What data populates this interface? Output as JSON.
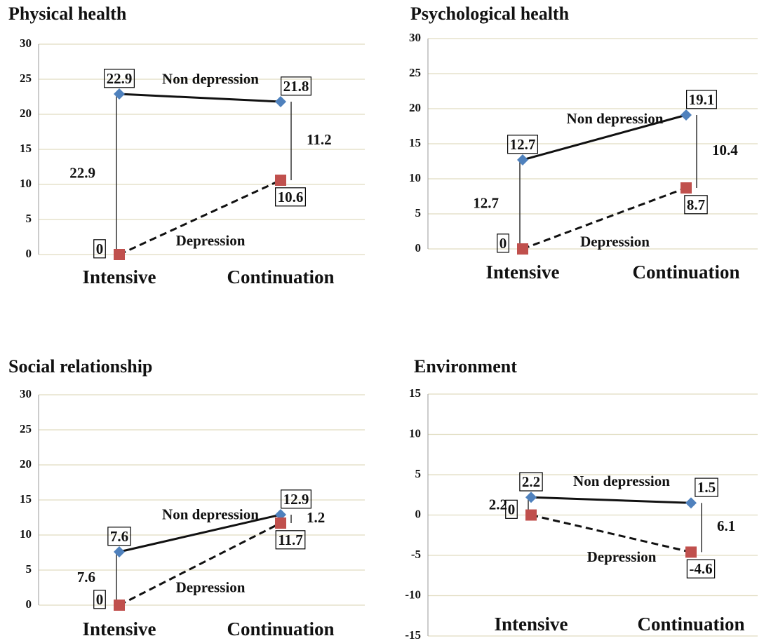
{
  "chart_data": [
    {
      "type": "line",
      "title": "Physical health",
      "categories": [
        "Intensive",
        "Continuation"
      ],
      "series": [
        {
          "name": "Non depression",
          "color": "#4f81bd",
          "marker": "diamond",
          "line": "solid",
          "values": [
            22.9,
            21.8
          ]
        },
        {
          "name": "Depression",
          "color": "#c0504d",
          "marker": "square",
          "line": "dashed",
          "values": [
            0,
            10.6
          ]
        }
      ],
      "differences": [
        22.9,
        11.2
      ],
      "ylim": [
        0,
        30
      ],
      "yticks": [
        0,
        5,
        10,
        15,
        20,
        25,
        30
      ],
      "grid": true
    },
    {
      "type": "line",
      "title": "Psychological health",
      "categories": [
        "Intensive",
        "Continuation"
      ],
      "series": [
        {
          "name": "Non depression",
          "color": "#4f81bd",
          "marker": "diamond",
          "line": "solid",
          "values": [
            12.7,
            19.1
          ]
        },
        {
          "name": "Depression",
          "color": "#c0504d",
          "marker": "square",
          "line": "dashed",
          "values": [
            0,
            8.7
          ]
        }
      ],
      "differences": [
        12.7,
        10.4
      ],
      "ylim": [
        0,
        30
      ],
      "yticks": [
        0,
        5,
        10,
        15,
        20,
        25,
        30
      ],
      "grid": true
    },
    {
      "type": "line",
      "title": "Social relationship",
      "categories": [
        "Intensive",
        "Continuation"
      ],
      "series": [
        {
          "name": "Non depression",
          "color": "#4f81bd",
          "marker": "diamond",
          "line": "solid",
          "values": [
            7.6,
            12.9
          ]
        },
        {
          "name": "Depression",
          "color": "#c0504d",
          "marker": "square",
          "line": "dashed",
          "values": [
            0,
            11.7
          ]
        }
      ],
      "differences": [
        7.6,
        1.2
      ],
      "ylim": [
        0,
        30
      ],
      "yticks": [
        0,
        5,
        10,
        15,
        20,
        25,
        30
      ],
      "grid": true
    },
    {
      "type": "line",
      "title": "Environment",
      "categories": [
        "Intensive",
        "Continuation"
      ],
      "series": [
        {
          "name": "Non depression",
          "color": "#4f81bd",
          "marker": "diamond",
          "line": "solid",
          "values": [
            2.2,
            1.5
          ]
        },
        {
          "name": "Depression",
          "color": "#c0504d",
          "marker": "square",
          "line": "dashed",
          "values": [
            0,
            -4.6
          ]
        }
      ],
      "differences": [
        2.2,
        6.1
      ],
      "ylim": [
        -15,
        15
      ],
      "yticks": [
        -15,
        -10,
        -5,
        0,
        5,
        10,
        15
      ],
      "grid": true
    }
  ]
}
